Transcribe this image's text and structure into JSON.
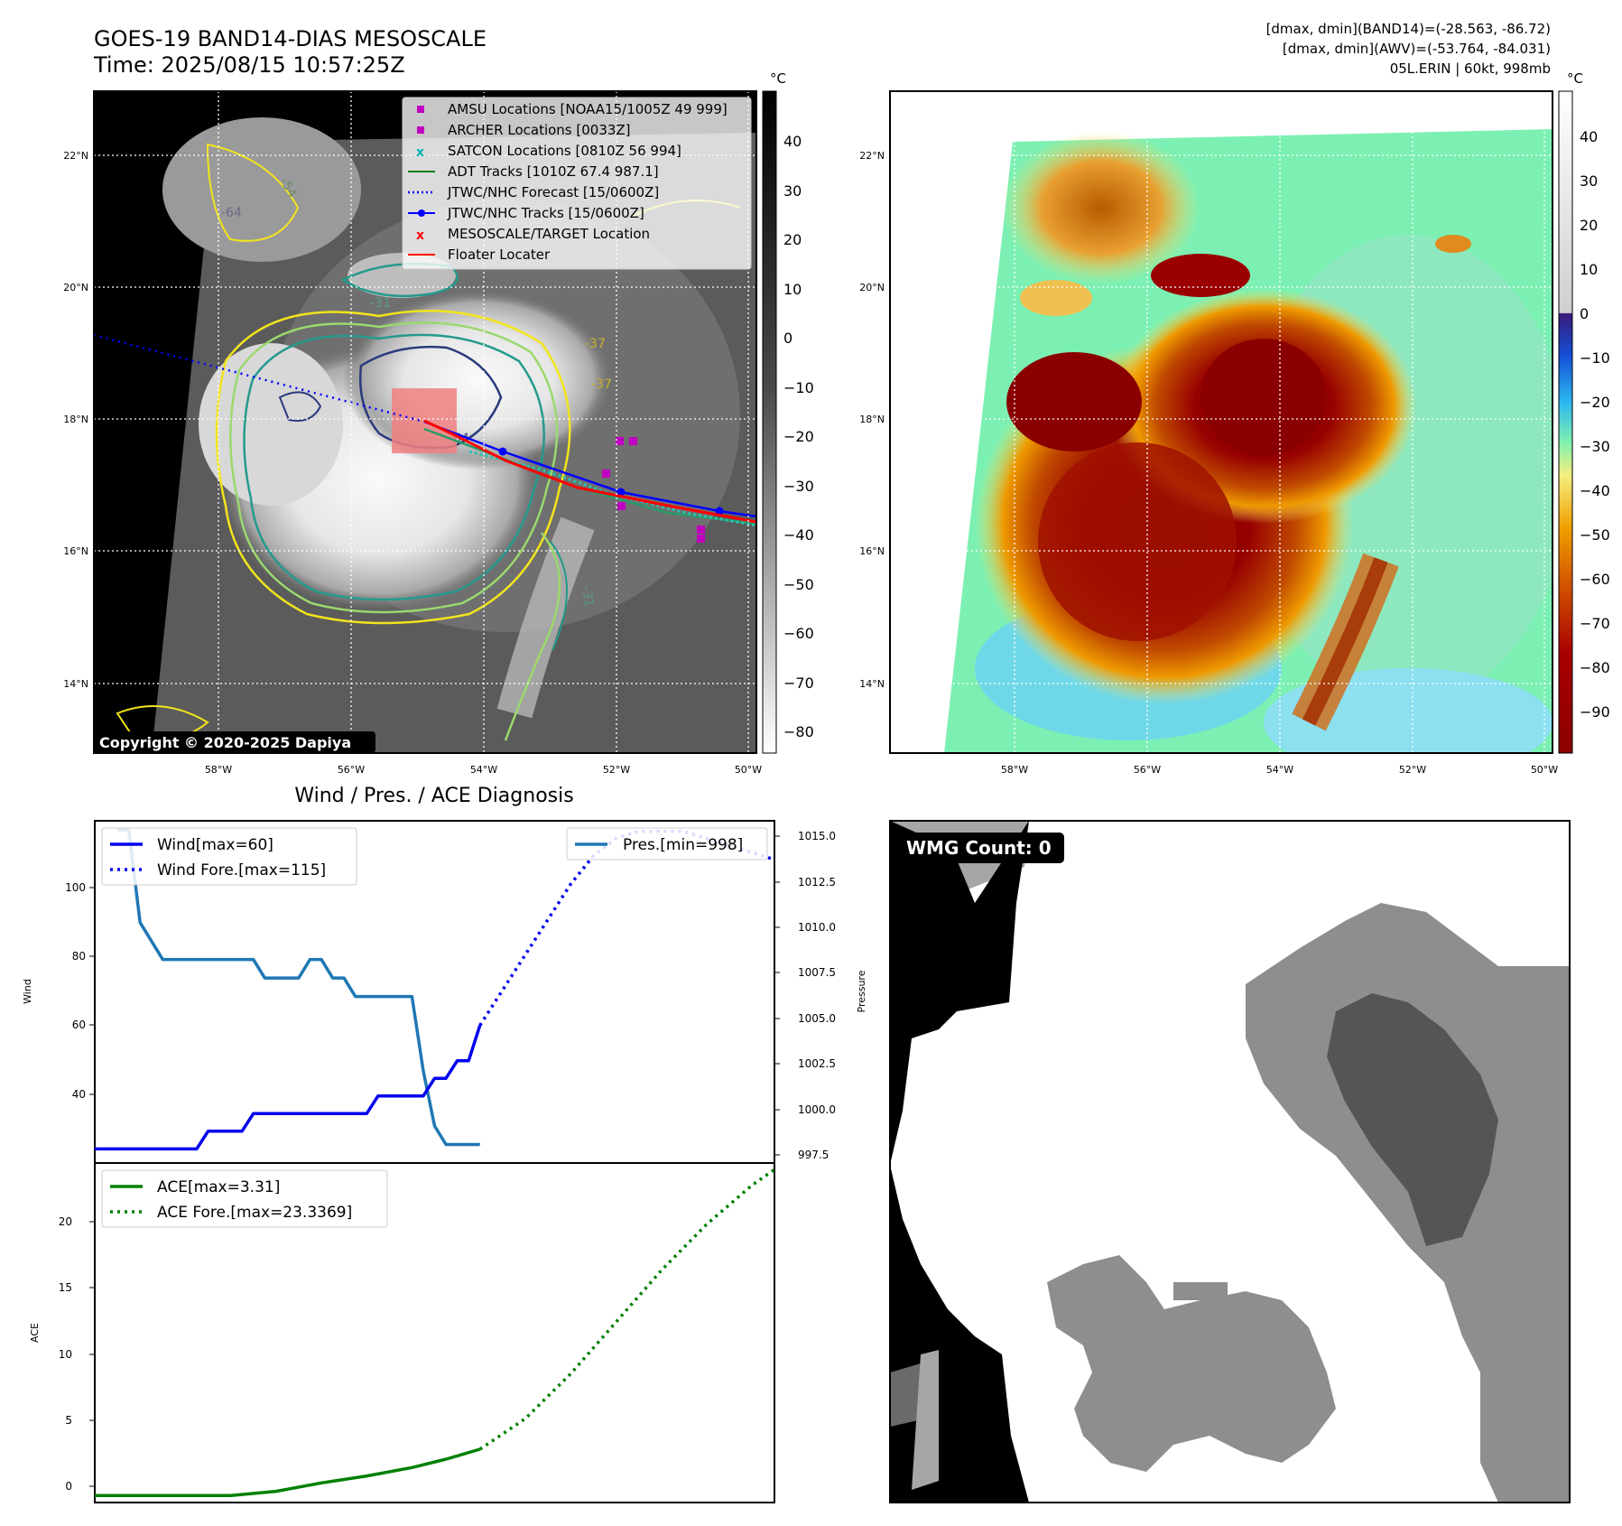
{
  "header": {
    "title": "GOES-19 BAND14-DIAS MESOSCALE",
    "time": "Time: 2025/08/15 10:57:25Z",
    "info_line1": "[dmax, dmin](BAND14)=(-28.563, -86.72)",
    "info_line2": "[dmax, dmin](AWV)=(-53.764, -84.031)",
    "info_line3": "05L.ERIN | 60kt, 998mb"
  },
  "map": {
    "lat_labels": [
      "22°N",
      "20°N",
      "18°N",
      "16°N",
      "14°N"
    ],
    "lon_labels": [
      "58°W",
      "56°W",
      "54°W",
      "52°W",
      "50°W"
    ],
    "copyright": "Copyright © 2020-2025 Dapiya",
    "contour_labels": [
      "-64",
      "-54",
      "-37",
      "-31",
      "-37",
      "-64",
      "-31"
    ],
    "legend": [
      {
        "label": "AMSU Locations [NOAA15/1005Z 49 999]",
        "color": "#c000c0",
        "marker": "square"
      },
      {
        "label": "ARCHER Locations [0033Z]",
        "color": "#c000c0",
        "marker": "square"
      },
      {
        "label": "SATCON Locations [0810Z 56 994]",
        "color": "#00c0c0",
        "marker": "x"
      },
      {
        "label": "ADT Tracks [1010Z 67.4 987.1]",
        "color": "#008000",
        "marker": "line"
      },
      {
        "label": "JTWC/NHC Forecast [15/0600Z]",
        "color": "#0000ff",
        "marker": "dotted"
      },
      {
        "label": "JTWC/NHC Tracks [15/0600Z]",
        "color": "#0000ff",
        "marker": "line-dot"
      },
      {
        "label": "MESOSCALE/TARGET Location",
        "color": "#ff0000",
        "marker": "x"
      },
      {
        "label": "Floater Locater",
        "color": "#ff0000",
        "marker": "line"
      }
    ]
  },
  "colorbar1": {
    "unit": "°C",
    "ticks": [
      "40",
      "30",
      "20",
      "10",
      "0",
      "−10",
      "−20",
      "−30",
      "−40",
      "−50",
      "−60",
      "−70",
      "−80"
    ]
  },
  "colorbar2": {
    "unit": "°C",
    "ticks": [
      "40",
      "30",
      "20",
      "10",
      "0",
      "−10",
      "−20",
      "−30",
      "−40",
      "−50",
      "−60",
      "−70",
      "−80",
      "−90"
    ]
  },
  "diagnosis": {
    "title": "Wind / Pres. / ACE Diagnosis",
    "wind_axis_label": "Wind",
    "pressure_axis_label": "Pressure",
    "ace_axis_label": "ACE",
    "wind_ticks": [
      "100",
      "80",
      "60",
      "40"
    ],
    "pressure_ticks": [
      "1015.0",
      "1012.5",
      "1010.0",
      "1007.5",
      "1005.0",
      "1002.5",
      "1000.0",
      "997.5"
    ],
    "ace_ticks": [
      "20",
      "15",
      "10",
      "5",
      "0"
    ],
    "legend_wind": "Wind[max=60]",
    "legend_wind_fore": "Wind Fore.[max=115]",
    "legend_pres": "Pres.[min=998]",
    "legend_ace": "ACE[max=3.31]",
    "legend_ace_fore": "ACE Fore.[max=23.3369]"
  },
  "wmg": {
    "label": "WMG Count: 0"
  },
  "colors": {
    "wind": "#0000ee",
    "pressure": "#1f77b4",
    "ace": "#008000",
    "background": "#ffffff"
  },
  "chart_data": [
    {
      "type": "line",
      "title": "Wind / Pres. / ACE Diagnosis",
      "ylabel": "Wind",
      "ylim": [
        21,
        118
      ],
      "series": [
        {
          "name": "Wind[max=60]",
          "x": [
            0,
            1,
            2,
            3,
            4,
            5,
            6,
            7,
            8,
            9,
            10,
            11,
            12,
            13,
            14,
            15,
            16,
            17,
            18,
            19,
            20,
            21,
            22,
            23,
            24,
            25,
            26,
            27,
            28,
            29,
            30,
            31,
            32,
            33,
            34
          ],
          "values": [
            25,
            25,
            25,
            25,
            25,
            25,
            25,
            25,
            25,
            25,
            30,
            30,
            30,
            30,
            35,
            35,
            35,
            35,
            35,
            35,
            35,
            35,
            35,
            35,
            35,
            40,
            40,
            40,
            40,
            40,
            45,
            45,
            50,
            50,
            60
          ]
        },
        {
          "name": "Wind Fore.[max=115]",
          "x": [
            34,
            36,
            38,
            40,
            42,
            44,
            46,
            48,
            50,
            52,
            54,
            56,
            58,
            60
          ],
          "values": [
            60,
            70,
            80,
            90,
            100,
            108,
            113,
            115,
            115,
            115,
            113,
            111,
            109,
            107
          ]
        }
      ]
    },
    {
      "type": "line",
      "ylabel": "Pressure",
      "ylim": [
        997.0,
        1015.5
      ],
      "series": [
        {
          "name": "Pres.[min=998]",
          "x": [
            2,
            3,
            4,
            5,
            6,
            7,
            8,
            9,
            10,
            11,
            12,
            13,
            14,
            15,
            16,
            17,
            18,
            19,
            20,
            21,
            22,
            23,
            24,
            25,
            26,
            27,
            28,
            29,
            30,
            31,
            32,
            33,
            34
          ],
          "values": [
            1015,
            1015,
            1010,
            1009,
            1008,
            1008,
            1008,
            1008,
            1008,
            1008,
            1008,
            1008,
            1008,
            1007,
            1007,
            1007,
            1007,
            1008,
            1008,
            1007,
            1007,
            1006,
            1006,
            1006,
            1006,
            1006,
            1006,
            1002,
            999,
            998,
            998,
            998,
            998
          ]
        }
      ]
    },
    {
      "type": "line",
      "ylabel": "ACE",
      "ylim": [
        -0.5,
        23.8
      ],
      "series": [
        {
          "name": "ACE[max=3.31]",
          "x": [
            0,
            3,
            6,
            9,
            12,
            16,
            20,
            24,
            28,
            31,
            34
          ],
          "values": [
            0,
            0,
            0,
            0,
            0,
            0.3,
            0.9,
            1.4,
            2.0,
            2.6,
            3.31
          ]
        },
        {
          "name": "ACE Fore.[max=23.3369]",
          "x": [
            34,
            38,
            42,
            46,
            50,
            54,
            58,
            60
          ],
          "values": [
            3.31,
            5.5,
            8.7,
            12.4,
            16.1,
            19.4,
            22.2,
            23.3369
          ]
        }
      ]
    }
  ]
}
